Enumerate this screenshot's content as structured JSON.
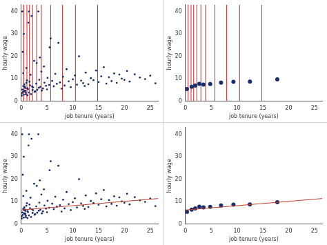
{
  "chart_data": [
    {
      "type": "scatter",
      "x_label": "job tenure (years)",
      "y_label": "hourly wage",
      "xlim": [
        0,
        26.5
      ],
      "ylim": [
        0,
        43
      ],
      "xticks": [
        0,
        5,
        10,
        15,
        20,
        25
      ],
      "yticks": [
        0,
        10,
        20,
        30,
        40
      ],
      "grid": false,
      "series": [
        {
          "type": "scatter",
          "color": "#1a2f6b",
          "marker": "circle",
          "x": [
            0.1,
            0.2,
            0.3,
            0.4,
            0.5,
            0.6,
            0.7,
            0.8,
            0.9,
            1.0,
            0.2,
            0.4,
            0.6,
            0.8,
            1.1,
            1.3,
            1.5,
            1.7,
            1.9,
            2.1,
            0.3,
            0.5,
            1.2,
            1.4,
            1.6,
            2.3,
            2.5,
            2.7,
            2.9,
            3.1,
            3.3,
            3.5,
            3.7,
            3.9,
            4.2,
            4.5,
            4.8,
            5.1,
            5.4,
            5.7,
            0.1,
            0.9,
            1.8,
            2.6,
            3.4,
            4.4,
            5.0,
            6.0,
            6.3,
            6.6,
            6.9,
            7.2,
            7.5,
            7.8,
            8.1,
            8.4,
            8.8,
            9.2,
            9.6,
            10.0,
            10.4,
            10.8,
            11.2,
            11.6,
            12.0,
            12.5,
            13.0,
            13.5,
            14.0,
            14.5,
            15.0,
            15.5,
            16.0,
            16.5,
            17.0,
            17.5,
            18.0,
            18.5,
            19.0,
            19.5,
            20.0,
            20.5,
            21.0,
            22.0,
            23.0,
            24.0,
            25.0,
            26.0,
            0.5,
            1.0,
            1.5,
            2.0,
            3.0,
            4.0,
            0.7,
            1.2,
            2.2,
            5.5,
            12.3,
            3.6
          ],
          "values": [
            3.5,
            5.2,
            4.1,
            6.8,
            2.9,
            7.5,
            4.4,
            5.9,
            3.8,
            8.2,
            40,
            12.5,
            6.1,
            4.7,
            9.3,
            5.4,
            40,
            7.1,
            3.2,
            6.6,
            22,
            4.9,
            5.8,
            35,
            8.7,
            6.2,
            18,
            4.5,
            7.9,
            5.1,
            40,
            9.6,
            6.4,
            13.2,
            5.7,
            8.3,
            6.9,
            10.4,
            7.3,
            28,
            2.5,
            3.1,
            11.8,
            4.2,
            6.0,
            15.5,
            5.3,
            9.1,
            6.7,
            12.2,
            7.8,
            26,
            8.4,
            5.6,
            10.9,
            7.0,
            14.3,
            8.9,
            6.3,
            9.8,
            11.5,
            7.4,
            20,
            9.2,
            8.1,
            12.8,
            7.6,
            10.3,
            9.4,
            13.7,
            8.6,
            11.1,
            15.2,
            7.9,
            10.7,
            9.0,
            12.4,
            8.2,
            11.9,
            10.1,
            9.5,
            13.5,
            8.8,
            12.0,
            10.6,
            9.9,
            11.4,
            8.0,
            30,
            14.8,
            3.9,
            38,
            17.0,
            4.8,
            6.5,
            2.7,
            5.0,
            24,
            6.8,
            19.5
          ]
        },
        {
          "type": "vlines",
          "color": "#d62728",
          "x": [
            0.5,
            1.1,
            1.6,
            2.2,
            3.0,
            3.9,
            5.7,
            8.0,
            10.5,
            14.8
          ]
        }
      ]
    },
    {
      "type": "scatter",
      "x_label": "job tenure (years)",
      "y_label": "hourly wage",
      "xlim": [
        0,
        26.5
      ],
      "ylim": [
        0,
        43
      ],
      "xticks": [
        0,
        5,
        10,
        15,
        20,
        25
      ],
      "yticks": [
        0,
        10,
        20,
        30,
        40
      ],
      "grid": false,
      "series": [
        {
          "type": "scatter",
          "color": "#1a2f6b",
          "marker": "circle",
          "x": [
            0.3,
            1.2,
            1.9,
            2.7,
            3.5,
            4.8,
            6.9,
            9.3,
            12.5,
            17.8
          ],
          "values": [
            5.5,
            6.5,
            7.0,
            7.8,
            7.5,
            7.7,
            8.3,
            8.7,
            8.8,
            9.8
          ]
        },
        {
          "type": "vlines",
          "color": "#d62728",
          "x": [
            0.5,
            1.1,
            1.6,
            2.2,
            3.0,
            3.9,
            5.7,
            8.0,
            10.5,
            14.8
          ]
        }
      ]
    },
    {
      "type": "scatter",
      "x_label": "job tenure (years)",
      "y_label": "hourly wage",
      "xlim": [
        0,
        26.5
      ],
      "ylim": [
        0,
        43
      ],
      "xticks": [
        0,
        5,
        10,
        15,
        20,
        25
      ],
      "yticks": [
        0,
        10,
        20,
        30,
        40
      ],
      "grid": false,
      "series": [
        {
          "type": "scatter",
          "color": "#1a2f6b",
          "marker": "circle",
          "x": [
            0.1,
            0.2,
            0.3,
            0.4,
            0.5,
            0.6,
            0.7,
            0.8,
            0.9,
            1.0,
            0.2,
            0.4,
            0.6,
            0.8,
            1.1,
            1.3,
            1.5,
            1.7,
            1.9,
            2.1,
            0.3,
            0.5,
            1.2,
            1.4,
            1.6,
            2.3,
            2.5,
            2.7,
            2.9,
            3.1,
            3.3,
            3.5,
            3.7,
            3.9,
            4.2,
            4.5,
            4.8,
            5.1,
            5.4,
            5.7,
            0.1,
            0.9,
            1.8,
            2.6,
            3.4,
            4.4,
            5.0,
            6.0,
            6.3,
            6.6,
            6.9,
            7.2,
            7.5,
            7.8,
            8.1,
            8.4,
            8.8,
            9.2,
            9.6,
            10.0,
            10.4,
            10.8,
            11.2,
            11.6,
            12.0,
            12.5,
            13.0,
            13.5,
            14.0,
            14.5,
            15.0,
            15.5,
            16.0,
            16.5,
            17.0,
            17.5,
            18.0,
            18.5,
            19.0,
            19.5,
            20.0,
            20.5,
            21.0,
            22.0,
            23.0,
            24.0,
            25.0,
            26.0,
            0.5,
            1.0,
            1.5,
            2.0,
            3.0,
            4.0,
            0.7,
            1.2,
            2.2,
            5.5,
            12.3,
            3.6
          ],
          "values": [
            3.5,
            5.2,
            4.1,
            6.8,
            2.9,
            7.5,
            4.4,
            5.9,
            3.8,
            8.2,
            40,
            12.5,
            6.1,
            4.7,
            9.3,
            5.4,
            40,
            7.1,
            3.2,
            6.6,
            22,
            4.9,
            5.8,
            35,
            8.7,
            6.2,
            18,
            4.5,
            7.9,
            5.1,
            40,
            9.6,
            6.4,
            13.2,
            5.7,
            8.3,
            6.9,
            10.4,
            7.3,
            28,
            2.5,
            3.1,
            11.8,
            4.2,
            6.0,
            15.5,
            5.3,
            9.1,
            6.7,
            12.2,
            7.8,
            26,
            8.4,
            5.6,
            10.9,
            7.0,
            14.3,
            8.9,
            6.3,
            9.8,
            11.5,
            7.4,
            20,
            9.2,
            8.1,
            12.8,
            7.6,
            10.3,
            9.4,
            13.7,
            8.6,
            11.1,
            15.2,
            7.9,
            10.7,
            9.0,
            12.4,
            8.2,
            11.9,
            10.1,
            9.5,
            13.5,
            8.8,
            12.0,
            10.6,
            9.9,
            11.4,
            8.0,
            30,
            14.8,
            3.9,
            38,
            17.0,
            4.8,
            6.5,
            2.7,
            5.0,
            24,
            6.8,
            19.5
          ]
        },
        {
          "type": "line",
          "color": "#c0392b",
          "x": [
            0,
            26.5
          ],
          "values": [
            6.3,
            11.4
          ]
        }
      ]
    },
    {
      "type": "scatter",
      "x_label": "job tenure (years)",
      "y_label": "hourly wage",
      "xlim": [
        0,
        26.5
      ],
      "ylim": [
        0,
        43
      ],
      "xticks": [
        0,
        5,
        10,
        15,
        20,
        25
      ],
      "yticks": [
        0,
        10,
        20,
        30,
        40
      ],
      "grid": false,
      "series": [
        {
          "type": "scatter",
          "color": "#1a2f6b",
          "marker": "circle",
          "x": [
            0.3,
            1.2,
            1.9,
            2.7,
            3.5,
            4.8,
            6.9,
            9.3,
            12.5,
            17.8
          ],
          "values": [
            5.5,
            6.5,
            7.0,
            7.8,
            7.5,
            7.7,
            8.3,
            8.7,
            8.8,
            9.8
          ]
        },
        {
          "type": "line",
          "color": "#c0392b",
          "x": [
            0,
            26.5
          ],
          "values": [
            6.3,
            11.4
          ]
        }
      ]
    }
  ]
}
